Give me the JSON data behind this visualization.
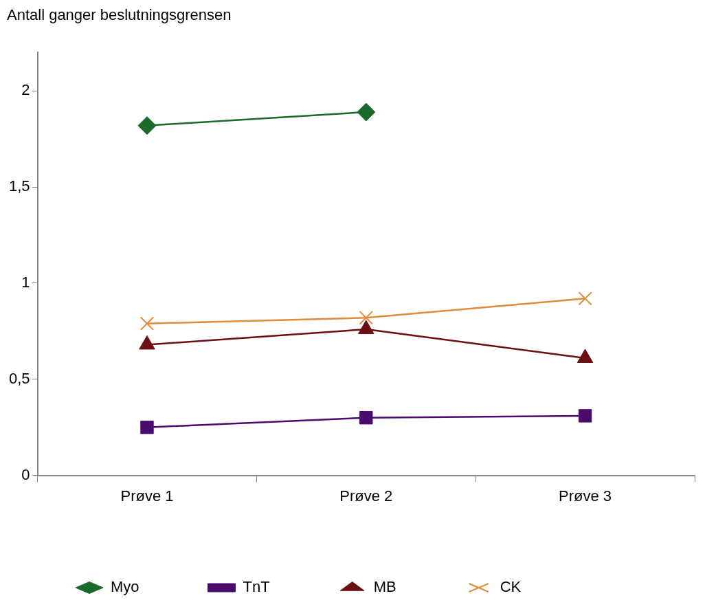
{
  "chart_data": {
    "type": "line",
    "ylabel": "Antall ganger beslutningsgrensen",
    "categories": [
      "Prøve 1",
      "Prøve 2",
      "Prøve 3"
    ],
    "series": [
      {
        "name": "Myo",
        "color": "#1a6b2a",
        "marker": "diamond",
        "values": [
          1.82,
          1.89,
          null
        ]
      },
      {
        "name": "TnT",
        "color": "#4b0a6e",
        "marker": "square",
        "values": [
          0.25,
          0.3,
          0.31
        ]
      },
      {
        "name": "MB",
        "color": "#6b0f12",
        "marker": "triangle",
        "values": [
          0.68,
          0.76,
          0.61
        ]
      },
      {
        "name": "CK",
        "color": "#e08a3a",
        "marker": "cross",
        "values": [
          0.79,
          0.82,
          0.92
        ]
      }
    ],
    "ylim": [
      0,
      2.2
    ],
    "yticks": [
      0,
      {
        "value": 0.5,
        "label": "0,5"
      },
      1,
      {
        "value": 1.5,
        "label": "1,5"
      },
      2
    ],
    "grid": false,
    "legend": "bottom",
    "line_style": "solid"
  }
}
